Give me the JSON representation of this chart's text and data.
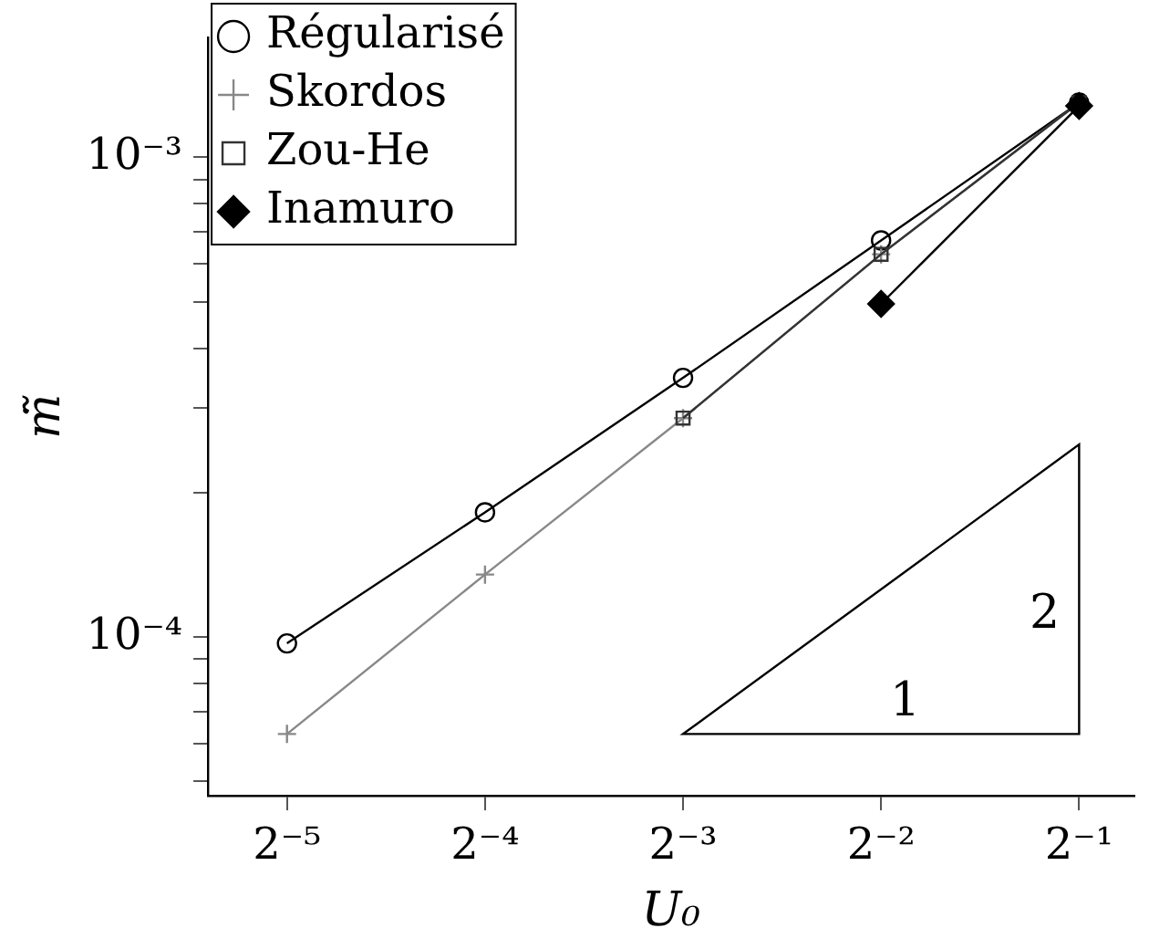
{
  "chart_data": {
    "type": "line",
    "xlabel": "U₀",
    "ylabel": "ṁ̃",
    "log": "xy",
    "legend": "top left",
    "grid": false,
    "xlim": [
      0.0237,
      0.606
    ],
    "ylim": [
      4.67e-05,
      0.00178
    ],
    "xticks": [
      {
        "value": 0.03125,
        "label": "2⁻⁵"
      },
      {
        "value": 0.0625,
        "label": "2⁻⁴"
      },
      {
        "value": 0.125,
        "label": "2⁻³"
      },
      {
        "value": 0.25,
        "label": "2⁻²"
      },
      {
        "value": 0.5,
        "label": "2⁻¹"
      }
    ],
    "yticks": [
      {
        "value": 5e-05,
        "label": null
      },
      {
        "value": 6e-05,
        "label": null
      },
      {
        "value": 7e-05,
        "label": null
      },
      {
        "value": 8e-05,
        "label": null
      },
      {
        "value": 9e-05,
        "label": null
      },
      {
        "value": 0.0001,
        "label": "10⁻⁴"
      },
      {
        "value": 0.0002,
        "label": null
      },
      {
        "value": 0.0003,
        "label": null
      },
      {
        "value": 0.0004,
        "label": null
      },
      {
        "value": 0.0005,
        "label": null
      },
      {
        "value": 0.0006,
        "label": null
      },
      {
        "value": 0.0007,
        "label": null
      },
      {
        "value": 0.0008,
        "label": null
      },
      {
        "value": 0.0009,
        "label": null
      },
      {
        "value": 0.001,
        "label": "10⁻³"
      }
    ],
    "series": [
      {
        "name": "Régularisé",
        "color": "#000000",
        "marker": "circle",
        "x": [
          0.03125,
          0.0625,
          0.125,
          0.25,
          0.5
        ],
        "values": [
          9.7e-05,
          0.000182,
          0.000347,
          0.000671,
          0.0013
        ]
      },
      {
        "name": "Skordos",
        "color": "#888888",
        "marker": "cross",
        "x": [
          0.03125,
          0.0625,
          0.125,
          0.25,
          0.5
        ],
        "values": [
          6.28e-05,
          0.000135,
          0.000286,
          0.000628,
          0.0013
        ]
      },
      {
        "name": "Zou-He",
        "color": "#333333",
        "marker": "square",
        "x": [
          0.125,
          0.25,
          0.5
        ],
        "values": [
          0.000286,
          0.000628,
          0.0013
        ]
      },
      {
        "name": "Inamuro",
        "color": "#000000",
        "marker": "diamond",
        "x": [
          0.25,
          0.5
        ],
        "values": [
          0.000495,
          0.00128
        ]
      }
    ],
    "annotations": [
      "1",
      "2"
    ]
  }
}
